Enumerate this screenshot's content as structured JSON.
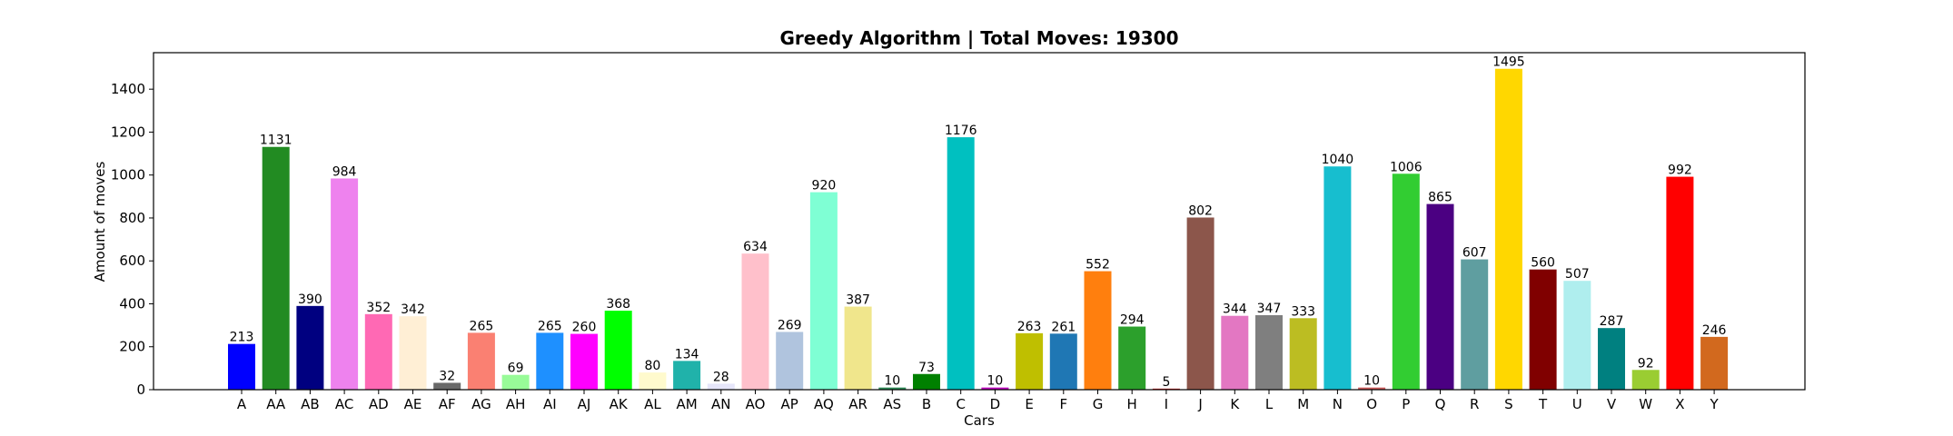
{
  "chart_data": {
    "type": "bar",
    "title": "Greedy Algorithm | Total Moves: 19300",
    "xlabel": "Cars",
    "ylabel": "Amount of moves",
    "ylim": [
      0,
      1570
    ],
    "yticks": [
      0,
      200,
      400,
      600,
      800,
      1000,
      1200,
      1400
    ],
    "grid": false,
    "categories": [
      "A",
      "AA",
      "AB",
      "AC",
      "AD",
      "AE",
      "AF",
      "AG",
      "AH",
      "AI",
      "AJ",
      "AK",
      "AL",
      "AM",
      "AN",
      "AO",
      "AP",
      "AQ",
      "AR",
      "AS",
      "B",
      "C",
      "D",
      "E",
      "F",
      "G",
      "H",
      "I",
      "J",
      "K",
      "L",
      "M",
      "N",
      "O",
      "P",
      "Q",
      "R",
      "S",
      "T",
      "U",
      "V",
      "W",
      "X",
      "Y"
    ],
    "values": [
      213,
      1131,
      390,
      984,
      352,
      342,
      32,
      265,
      69,
      265,
      260,
      368,
      80,
      134,
      28,
      634,
      269,
      920,
      387,
      10,
      73,
      1176,
      10,
      263,
      261,
      552,
      294,
      5,
      802,
      344,
      347,
      333,
      1040,
      10,
      1006,
      865,
      607,
      1495,
      560,
      507,
      287,
      92,
      992,
      246
    ],
    "colors": [
      "#0000ff",
      "#228b22",
      "#000080",
      "#ee82ee",
      "#ff69b4",
      "#ffefd5",
      "#696969",
      "#fa8072",
      "#98fb98",
      "#1e90ff",
      "#ff00ff",
      "#00ff00",
      "#fffacd",
      "#20b2aa",
      "#e6e6fa",
      "#ffc0cb",
      "#b0c4de",
      "#7fffd4",
      "#f0e68c",
      "#2e8b57",
      "#008000",
      "#00c0c0",
      "#bf00bf",
      "#bfbf00",
      "#1f77b4",
      "#ff7f0e",
      "#2ca02c",
      "#d62728",
      "#8c564b",
      "#e377c2",
      "#7f7f7f",
      "#bcbd22",
      "#17becf",
      "#cd5c5c",
      "#32cd32",
      "#4b0082",
      "#5f9ea0",
      "#ffd700",
      "#800000",
      "#afeeee",
      "#008080",
      "#9acd32",
      "#ff0000",
      "#d2691e"
    ]
  }
}
